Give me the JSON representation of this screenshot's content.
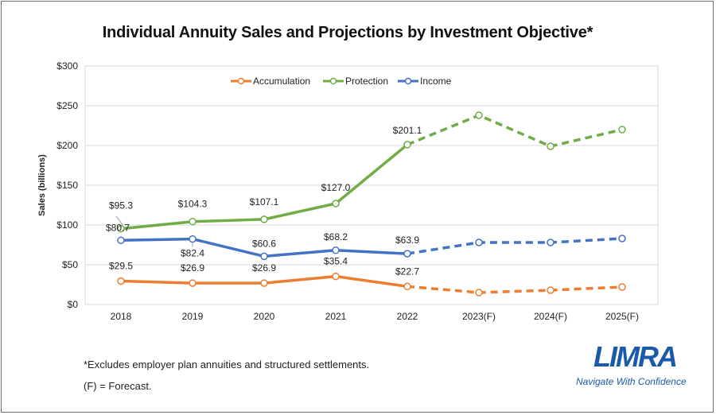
{
  "title": "Individual Annuity Sales and Projections by Investment Objective*",
  "notes": {
    "line1": "*Excludes employer plan annuities and structured settlements.",
    "line2": "(F) = Forecast."
  },
  "logo": {
    "text": "LIMRA",
    "tagline": "Navigate With Confidence"
  },
  "chart_data": {
    "type": "line",
    "title": "Individual Annuity Sales and Projections by Investment Objective*",
    "xlabel": "",
    "ylabel": "Sales (billions)",
    "ylim": [
      0,
      300
    ],
    "yticks": [
      0,
      50,
      100,
      150,
      200,
      250,
      300
    ],
    "ytick_labels": [
      "$0",
      "$50",
      "$100",
      "$150",
      "$200",
      "$250",
      "$300"
    ],
    "categories": [
      "2018",
      "2019",
      "2020",
      "2021",
      "2022",
      "2023(F)",
      "2024(F)",
      "2025(F)"
    ],
    "forecast_start_index": 4,
    "grid": "horizontal",
    "legend": "top",
    "series": [
      {
        "name": "Accumulation",
        "color": "#ed7d31",
        "values": [
          29.5,
          26.9,
          26.9,
          35.4,
          22.7,
          15,
          18,
          22
        ],
        "labels": [
          "$29.5",
          "$26.9",
          "$26.9",
          "$35.4",
          "$22.7",
          "",
          "",
          ""
        ]
      },
      {
        "name": "Protection",
        "color": "#70ad47",
        "values": [
          95.3,
          104.3,
          107.1,
          127.0,
          201.1,
          238,
          199,
          220
        ],
        "labels": [
          "$95.3",
          "$104.3",
          "$107.1",
          "$127.0",
          "$201.1",
          "",
          "",
          ""
        ]
      },
      {
        "name": "Income",
        "color": "#4472c4",
        "values": [
          80.7,
          82.4,
          60.6,
          68.2,
          63.9,
          78,
          78,
          83
        ],
        "labels": [
          "$80.7",
          "$82.4",
          "$60.6",
          "$68.2",
          "$63.9",
          "",
          "",
          ""
        ]
      }
    ]
  }
}
